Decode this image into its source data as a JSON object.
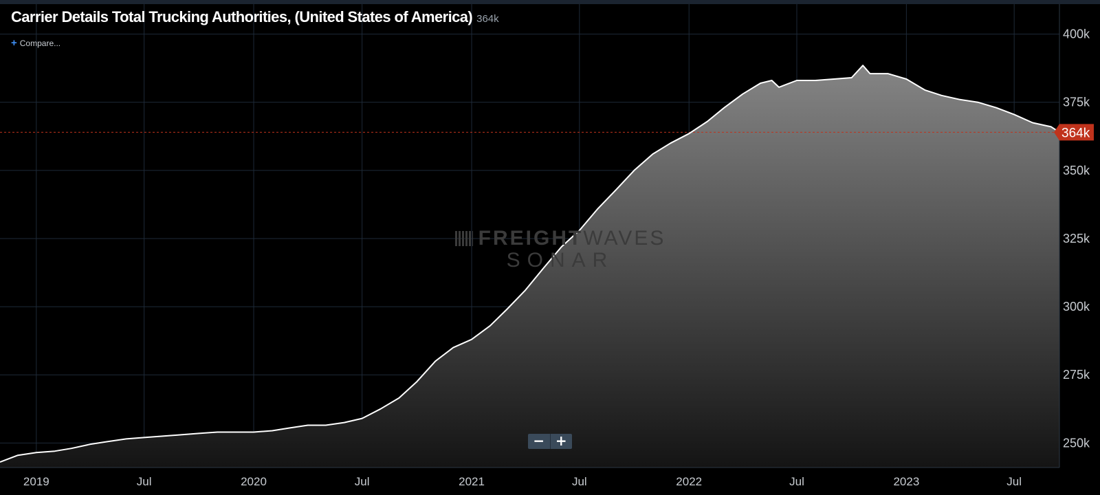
{
  "header": {
    "title": "Carrier Details Total Trucking Authorities, (United States of America)",
    "current_value": "364k",
    "compare_label": "Compare..."
  },
  "zoom": {
    "minus_label": "−",
    "plus_label": "+"
  },
  "watermark": {
    "line1a": "FREIGHT",
    "line1b": "WAVES",
    "line2": "SONAR"
  },
  "colors": {
    "line": "#ffffff",
    "last_value": "#c0331c",
    "grid": "#1e2a38",
    "background": "#000000"
  },
  "chart_data": {
    "type": "area",
    "title": "Carrier Details Total Trucking Authorities, (United States of America)",
    "x_axis": {
      "start": "2018-11-01",
      "end": "2023-09-15",
      "tick_labels": [
        "2019",
        "Jul",
        "2020",
        "Jul",
        "2021",
        "Jul",
        "2022",
        "Jul",
        "2023",
        "Jul"
      ],
      "tick_dates": [
        "2019-01-01",
        "2019-07-01",
        "2020-01-01",
        "2020-07-01",
        "2021-01-01",
        "2021-07-01",
        "2022-01-01",
        "2022-07-01",
        "2023-01-01",
        "2023-07-01"
      ]
    },
    "y_axis": {
      "tick_labels": [
        "250k",
        "275k",
        "300k",
        "325k",
        "350k",
        "375k",
        "400k"
      ],
      "tick_values": [
        250000,
        275000,
        300000,
        325000,
        350000,
        375000,
        400000
      ],
      "position": "right"
    },
    "ylim": [
      241000,
      411000
    ],
    "last_value": 364000,
    "last_value_label": "364k",
    "grid": true,
    "series": [
      {
        "points": [
          [
            "2018-11-01",
            243000
          ],
          [
            "2018-12-01",
            245500
          ],
          [
            "2019-01-01",
            246500
          ],
          [
            "2019-02-01",
            247000
          ],
          [
            "2019-03-01",
            248000
          ],
          [
            "2019-04-01",
            249500
          ],
          [
            "2019-05-01",
            250500
          ],
          [
            "2019-06-01",
            251500
          ],
          [
            "2019-07-01",
            252000
          ],
          [
            "2019-08-01",
            252500
          ],
          [
            "2019-09-01",
            253000
          ],
          [
            "2019-10-01",
            253500
          ],
          [
            "2019-11-01",
            254000
          ],
          [
            "2019-12-01",
            254000
          ],
          [
            "2020-01-01",
            254000
          ],
          [
            "2020-02-01",
            254500
          ],
          [
            "2020-03-01",
            255500
          ],
          [
            "2020-04-01",
            256500
          ],
          [
            "2020-05-01",
            256500
          ],
          [
            "2020-06-01",
            257500
          ],
          [
            "2020-07-01",
            259000
          ],
          [
            "2020-08-01",
            262500
          ],
          [
            "2020-09-01",
            266500
          ],
          [
            "2020-10-01",
            272500
          ],
          [
            "2020-11-01",
            280000
          ],
          [
            "2020-12-01",
            285000
          ],
          [
            "2021-01-01",
            288000
          ],
          [
            "2021-02-01",
            293000
          ],
          [
            "2021-03-01",
            299000
          ],
          [
            "2021-04-01",
            306000
          ],
          [
            "2021-05-01",
            314000
          ],
          [
            "2021-06-01",
            322000
          ],
          [
            "2021-07-01",
            328000
          ],
          [
            "2021-08-01",
            336000
          ],
          [
            "2021-09-01",
            343000
          ],
          [
            "2021-10-01",
            350000
          ],
          [
            "2021-11-01",
            356000
          ],
          [
            "2021-12-01",
            360000
          ],
          [
            "2022-01-01",
            363500
          ],
          [
            "2022-02-01",
            368000
          ],
          [
            "2022-03-01",
            373000
          ],
          [
            "2022-04-01",
            378000
          ],
          [
            "2022-05-01",
            382000
          ],
          [
            "2022-05-20",
            383000
          ],
          [
            "2022-06-01",
            380500
          ],
          [
            "2022-07-01",
            383000
          ],
          [
            "2022-08-01",
            383000
          ],
          [
            "2022-09-01",
            383500
          ],
          [
            "2022-10-01",
            384000
          ],
          [
            "2022-10-20",
            388500
          ],
          [
            "2022-11-01",
            385500
          ],
          [
            "2022-12-01",
            385500
          ],
          [
            "2023-01-01",
            383500
          ],
          [
            "2023-02-01",
            379500
          ],
          [
            "2023-03-01",
            377500
          ],
          [
            "2023-04-01",
            376000
          ],
          [
            "2023-05-01",
            375000
          ],
          [
            "2023-06-01",
            373000
          ],
          [
            "2023-07-01",
            370500
          ],
          [
            "2023-08-01",
            367500
          ],
          [
            "2023-09-01",
            366000
          ],
          [
            "2023-09-15",
            364000
          ]
        ]
      }
    ]
  }
}
